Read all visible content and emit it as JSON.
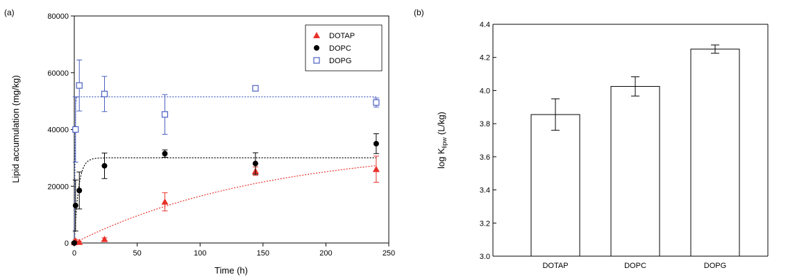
{
  "panels": {
    "a_label": "(a)",
    "b_label": "(b)"
  },
  "chart_data": [
    {
      "type": "scatter",
      "panel": "(a)",
      "xlabel": "Time (h)",
      "ylabel": "Lipid accumulation (mg/kg)",
      "xlim": [
        0,
        250
      ],
      "ylim": [
        0,
        80000
      ],
      "xticks": [
        0,
        50,
        100,
        150,
        200,
        250
      ],
      "yticks": [
        0,
        20000,
        40000,
        60000,
        80000
      ],
      "grid": false,
      "legend_position": "top-right",
      "series": [
        {
          "name": "DOTAP",
          "marker": "triangle",
          "color": "#e8312a",
          "points": [
            {
              "x": 0,
              "y": 200,
              "err": 300
            },
            {
              "x": 1,
              "y": 800,
              "err": 400
            },
            {
              "x": 4,
              "y": 300,
              "err": 300
            },
            {
              "x": 24,
              "y": 1300,
              "err": 500
            },
            {
              "x": 72,
              "y": 14500,
              "err": 3200
            },
            {
              "x": 144,
              "y": 25300,
              "err": 1500
            },
            {
              "x": 240,
              "y": 26000,
              "err": 4600
            }
          ],
          "fit": {
            "model": "first-order",
            "plateau": 34500,
            "k": 0.0065
          }
        },
        {
          "name": "DOPC",
          "marker": "filled-circle",
          "color": "#000000",
          "points": [
            {
              "x": 0,
              "y": 0,
              "err": 0
            },
            {
              "x": 1,
              "y": 13200,
              "err": 9000
            },
            {
              "x": 4,
              "y": 18500,
              "err": 6500
            },
            {
              "x": 24,
              "y": 27200,
              "err": 4500
            },
            {
              "x": 72,
              "y": 31500,
              "err": 1300
            },
            {
              "x": 144,
              "y": 28000,
              "err": 3800
            },
            {
              "x": 240,
              "y": 35000,
              "err": 3500
            }
          ],
          "fit": {
            "model": "first-order",
            "plateau": 30000,
            "k": 0.3
          }
        },
        {
          "name": "DOPG",
          "marker": "open-square",
          "color": "#4a5fc0",
          "points": [
            {
              "x": 1,
              "y": 40000,
              "err": 11500
            },
            {
              "x": 4,
              "y": 55500,
              "err": 9000
            },
            {
              "x": 24,
              "y": 52500,
              "err": 6200
            },
            {
              "x": 72,
              "y": 45300,
              "err": 7000
            },
            {
              "x": 144,
              "y": 54500,
              "err": 700
            },
            {
              "x": 240,
              "y": 49500,
              "err": 1600
            }
          ],
          "fit": {
            "model": "first-order",
            "plateau": 51500,
            "k": 3
          }
        }
      ]
    },
    {
      "type": "bar",
      "panel": "(b)",
      "ylabel_main": "log K",
      "ylabel_sub": "lipw",
      "ylabel_unit": " (L/kg)",
      "categories": [
        "DOTAP",
        "DOPC",
        "DOPG"
      ],
      "values": [
        3.855,
        4.025,
        4.25
      ],
      "errors": [
        0.095,
        0.058,
        0.025
      ],
      "ylim": [
        3.0,
        4.4
      ],
      "yticks": [
        "3.0",
        "3.2",
        "3.4",
        "3.6",
        "3.8",
        "4.0",
        "4.2",
        "4.4"
      ],
      "bar_fill": "#ffffff",
      "grid": false
    }
  ]
}
